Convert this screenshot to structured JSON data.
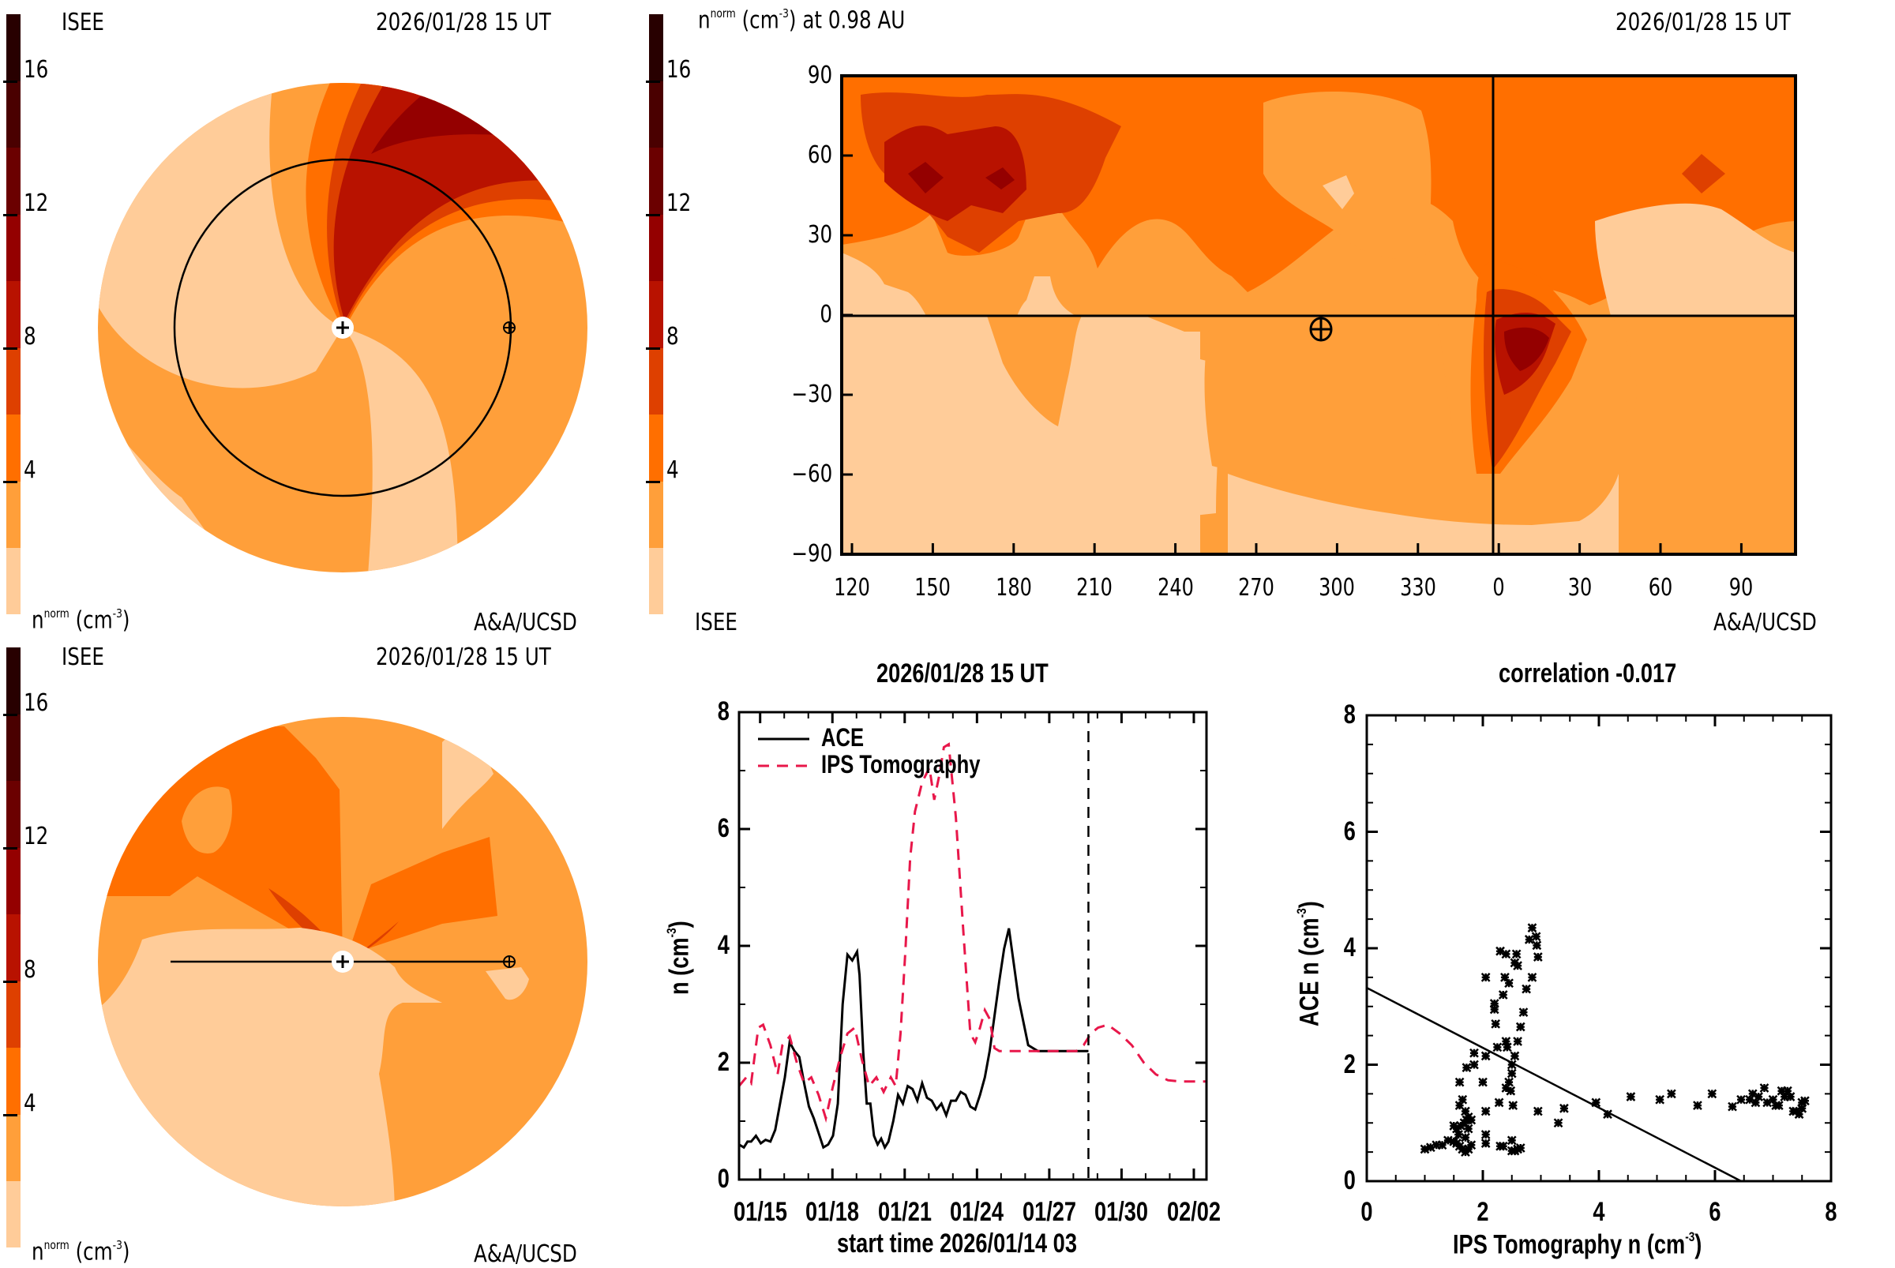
{
  "palette": {
    "levels": [
      0,
      2,
      4,
      6,
      8,
      10,
      12,
      14,
      16,
      18
    ],
    "colors": [
      "#FFCC99",
      "#FF9F3A",
      "#FF6F00",
      "#DE4000",
      "#B81200",
      "#940000",
      "#6B0000",
      "#4A0000",
      "#280000"
    ],
    "ticks": [
      "4",
      "8",
      "12",
      "16"
    ],
    "tick_values": [
      4,
      8,
      12,
      16
    ]
  },
  "panel_ecliptic": {
    "source": "ISEE",
    "time": "2026/01/28 15 UT",
    "unit_label": "n",
    "unit_sup": "norm",
    "unit_rest": "(cm",
    "unit_exp": "-3",
    "unit_close": ")",
    "credit": "A&A/UCSD"
  },
  "panel_meridional": {
    "source": "ISEE",
    "time": "2026/01/28 15 UT",
    "unit_label": "n",
    "unit_sup": "norm",
    "unit_rest": "(cm",
    "unit_exp": "-3",
    "unit_close": ")",
    "credit": "A&A/UCSD"
  },
  "panel_map": {
    "title_n": "n",
    "title_sup": "norm",
    "title_rest": "(cm",
    "title_exp": "-3",
    "title_tail": ") at 0.98 AU",
    "time": "2026/01/28 15 UT",
    "source": "ISEE",
    "credit": "A&A/UCSD",
    "y_ticks": [
      "90",
      "60",
      "30",
      "0",
      "−30",
      "−60",
      "−90"
    ],
    "y_values": [
      90,
      60,
      30,
      0,
      -30,
      -60,
      -90
    ],
    "x_ticks": [
      "120",
      "150",
      "180",
      "210",
      "240",
      "270",
      "300",
      "330",
      "0",
      "30",
      "60",
      "90"
    ],
    "earth_marker": {
      "longitude": 295,
      "latitude": -5
    }
  },
  "chart_data": [
    {
      "type": "line",
      "title": "2026/01/28 15 UT",
      "xlabel": "start time 2026/01/14 03",
      "ylabel": "n (cm",
      "ylabel_exp": "-3",
      "ylabel_close": ")",
      "xlim_days": [
        0,
        19.4
      ],
      "ylim": [
        0,
        8
      ],
      "y_ticks": [
        "0",
        "2",
        "4",
        "6",
        "8"
      ],
      "x_ticks": [
        {
          "label": "01/15",
          "day": 0.875
        },
        {
          "label": "01/18",
          "day": 3.875
        },
        {
          "label": "01/21",
          "day": 6.875
        },
        {
          "label": "01/24",
          "day": 9.875
        },
        {
          "label": "01/27",
          "day": 12.875
        },
        {
          "label": "01/30",
          "day": 15.875
        },
        {
          "label": "02/02",
          "day": 18.875
        }
      ],
      "current_time_day": 14.5,
      "legend": "top-left",
      "series": [
        {
          "name": "ACE",
          "style": "solid",
          "color": "#000000",
          "x": [
            0,
            0.2,
            0.35,
            0.5,
            0.7,
            0.9,
            1.1,
            1.3,
            1.5,
            1.7,
            1.9,
            2.1,
            2.3,
            2.5,
            2.7,
            2.9,
            3.1,
            3.3,
            3.5,
            3.7,
            3.9,
            4.1,
            4.3,
            4.5,
            4.7,
            4.9,
            5.0,
            5.15,
            5.3,
            5.45,
            5.6,
            5.75,
            5.9,
            6.05,
            6.2,
            6.4,
            6.6,
            6.8,
            7.0,
            7.2,
            7.4,
            7.6,
            7.8,
            8.0,
            8.2,
            8.4,
            8.6,
            8.8,
            9.0,
            9.2,
            9.4,
            9.6,
            9.8,
            10.0,
            10.2,
            10.4,
            10.6,
            10.8,
            11.0,
            11.2,
            11.4,
            11.6,
            11.8,
            12.0,
            12.2,
            12.4,
            12.6,
            12.8,
            13.0,
            13.2,
            13.4,
            13.6,
            13.8,
            14.0,
            14.2,
            14.4,
            14.5
          ],
          "y": [
            0.6,
            0.55,
            0.65,
            0.65,
            0.75,
            0.62,
            0.68,
            0.65,
            0.85,
            1.3,
            1.75,
            2.35,
            2.2,
            2.1,
            1.65,
            1.25,
            1.05,
            0.8,
            0.55,
            0.6,
            0.75,
            1.3,
            3.0,
            3.85,
            3.75,
            3.9,
            3.5,
            2.2,
            1.3,
            1.3,
            0.75,
            0.6,
            0.7,
            0.55,
            0.65,
            1.0,
            1.45,
            1.3,
            1.6,
            1.55,
            1.35,
            1.65,
            1.4,
            1.35,
            1.2,
            1.3,
            1.1,
            1.35,
            1.35,
            1.5,
            1.45,
            1.25,
            1.2,
            1.45,
            1.75,
            2.2,
            2.8,
            3.4,
            3.95,
            4.3,
            3.7,
            3.1,
            2.7,
            2.3,
            2.25,
            2.2,
            2.2,
            2.2,
            2.2,
            2.2,
            2.2,
            2.2,
            2.2,
            2.2,
            2.2,
            2.2,
            2.2
          ]
        },
        {
          "name": "IPS Tomography",
          "style": "dashed",
          "color": "#E8174A",
          "x": [
            0,
            0.3,
            0.5,
            0.8,
            1.0,
            1.3,
            1.6,
            1.8,
            2.1,
            2.4,
            2.7,
            3.0,
            3.3,
            3.6,
            3.9,
            4.2,
            4.5,
            4.8,
            5.1,
            5.4,
            5.7,
            6.0,
            6.3,
            6.5,
            6.7,
            6.9,
            7.1,
            7.3,
            7.6,
            7.9,
            8.1,
            8.3,
            8.5,
            8.7,
            9.0,
            9.3,
            9.6,
            9.8,
            10.0,
            10.2,
            10.4,
            10.6,
            10.8,
            11.0,
            11.2,
            11.4,
            11.6,
            11.9,
            12.2,
            12.5,
            12.8,
            13.1,
            13.4,
            13.7,
            14.0,
            14.3,
            14.6,
            14.9,
            15.3,
            15.8,
            16.3,
            16.8,
            17.3,
            17.8,
            18.3,
            18.8,
            19.4
          ],
          "y": [
            1.6,
            1.75,
            1.65,
            2.6,
            2.65,
            2.3,
            1.8,
            2.3,
            2.45,
            2.0,
            1.65,
            1.75,
            1.45,
            1.05,
            1.6,
            2.1,
            2.5,
            2.6,
            2.05,
            1.6,
            1.75,
            1.5,
            1.75,
            1.6,
            2.5,
            3.9,
            5.5,
            6.3,
            6.8,
            7.05,
            6.5,
            6.9,
            7.4,
            7.45,
            6.2,
            4.3,
            2.5,
            2.35,
            2.6,
            2.9,
            2.75,
            2.25,
            2.2,
            2.2,
            2.2,
            2.2,
            2.2,
            2.2,
            2.2,
            2.2,
            2.2,
            2.2,
            2.2,
            2.2,
            2.2,
            2.3,
            2.5,
            2.6,
            2.65,
            2.5,
            2.3,
            2.0,
            1.8,
            1.7,
            1.68,
            1.68,
            1.68
          ]
        }
      ]
    },
    {
      "type": "scatter",
      "title": "correlation -0.017",
      "xlabel": "IPS Tomography n (cm",
      "xlabel_exp": "-3",
      "xlabel_close": ")",
      "ylabel": "ACE n (cm",
      "ylabel_exp": "-3",
      "ylabel_close": ")",
      "xlim": [
        0,
        8
      ],
      "ylim": [
        0,
        8
      ],
      "x_ticks": [
        "0",
        "2",
        "4",
        "6",
        "8"
      ],
      "y_ticks": [
        "0",
        "2",
        "4",
        "6",
        "8"
      ],
      "fit_line": {
        "x": [
          0,
          6.45
        ],
        "y": [
          3.32,
          0
        ]
      },
      "points": [
        [
          1.0,
          0.55
        ],
        [
          1.1,
          0.58
        ],
        [
          1.2,
          0.62
        ],
        [
          1.3,
          0.62
        ],
        [
          1.4,
          0.7
        ],
        [
          1.5,
          0.68
        ],
        [
          1.55,
          0.65
        ],
        [
          1.6,
          0.6
        ],
        [
          1.65,
          0.55
        ],
        [
          1.7,
          0.5
        ],
        [
          1.75,
          0.55
        ],
        [
          1.8,
          0.62
        ],
        [
          1.62,
          0.95
        ],
        [
          1.68,
          1.0
        ],
        [
          1.72,
          1.05
        ],
        [
          1.75,
          1.1
        ],
        [
          1.6,
          1.3
        ],
        [
          1.65,
          1.4
        ],
        [
          1.7,
          1.2
        ],
        [
          1.55,
          0.9
        ],
        [
          1.5,
          0.95
        ],
        [
          1.58,
          0.8
        ],
        [
          1.7,
          0.75
        ],
        [
          1.75,
          0.9
        ],
        [
          1.8,
          1.05
        ],
        [
          1.6,
          1.7
        ],
        [
          1.72,
          1.95
        ],
        [
          1.85,
          2.0
        ],
        [
          1.85,
          2.2
        ],
        [
          2.0,
          1.7
        ],
        [
          2.05,
          1.2
        ],
        [
          2.05,
          0.8
        ],
        [
          2.05,
          0.65
        ],
        [
          2.05,
          2.15
        ],
        [
          2.05,
          3.5
        ],
        [
          2.2,
          3.05
        ],
        [
          2.2,
          2.95
        ],
        [
          2.22,
          2.7
        ],
        [
          2.25,
          2.3
        ],
        [
          2.28,
          1.35
        ],
        [
          2.3,
          0.6
        ],
        [
          2.35,
          0.6
        ],
        [
          2.3,
          3.95
        ],
        [
          2.35,
          3.2
        ],
        [
          2.38,
          3.5
        ],
        [
          2.4,
          3.9
        ],
        [
          2.4,
          2.4
        ],
        [
          2.42,
          2.3
        ],
        [
          2.45,
          3.4
        ],
        [
          2.4,
          1.6
        ],
        [
          2.45,
          1.7
        ],
        [
          2.48,
          1.55
        ],
        [
          2.5,
          2.0
        ],
        [
          2.5,
          1.85
        ],
        [
          2.55,
          2.15
        ],
        [
          2.52,
          1.3
        ],
        [
          2.5,
          0.7
        ],
        [
          2.5,
          0.52
        ],
        [
          2.55,
          0.52
        ],
        [
          2.6,
          0.55
        ],
        [
          2.65,
          0.57
        ],
        [
          2.55,
          3.75
        ],
        [
          2.58,
          3.9
        ],
        [
          2.6,
          3.7
        ],
        [
          2.6,
          2.4
        ],
        [
          2.65,
          2.65
        ],
        [
          2.7,
          2.9
        ],
        [
          2.75,
          3.3
        ],
        [
          2.8,
          4.15
        ],
        [
          2.85,
          4.35
        ],
        [
          2.85,
          3.5
        ],
        [
          2.92,
          4.2
        ],
        [
          2.93,
          4.05
        ],
        [
          2.95,
          3.85
        ],
        [
          2.95,
          1.2
        ],
        [
          3.3,
          1.0
        ],
        [
          3.4,
          1.25
        ],
        [
          3.95,
          1.35
        ],
        [
          4.15,
          1.15
        ],
        [
          4.55,
          1.45
        ],
        [
          5.05,
          1.4
        ],
        [
          5.25,
          1.5
        ],
        [
          5.7,
          1.3
        ],
        [
          5.95,
          1.5
        ],
        [
          6.3,
          1.28
        ],
        [
          6.45,
          1.4
        ],
        [
          6.6,
          1.4
        ],
        [
          6.65,
          1.5
        ],
        [
          6.7,
          1.35
        ],
        [
          6.75,
          1.45
        ],
        [
          6.85,
          1.6
        ],
        [
          6.9,
          1.35
        ],
        [
          7.0,
          1.4
        ],
        [
          7.05,
          1.3
        ],
        [
          7.1,
          1.3
        ],
        [
          7.15,
          1.55
        ],
        [
          7.2,
          1.45
        ],
        [
          7.25,
          1.55
        ],
        [
          7.3,
          1.45
        ],
        [
          7.35,
          1.2
        ],
        [
          7.4,
          1.2
        ],
        [
          7.45,
          1.15
        ],
        [
          7.5,
          1.35
        ],
        [
          7.5,
          1.25
        ],
        [
          7.55,
          1.38
        ]
      ]
    }
  ]
}
